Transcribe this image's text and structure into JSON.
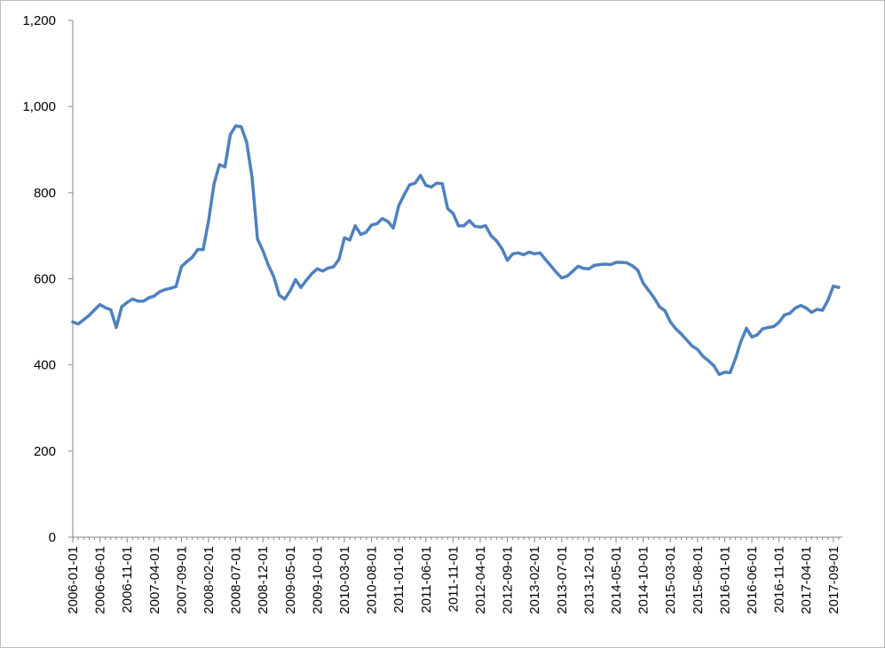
{
  "chart_data": {
    "type": "line",
    "title": "",
    "xlabel": "",
    "ylabel": "",
    "ylim": [
      0,
      1200
    ],
    "yticks": [
      0,
      200,
      400,
      600,
      800,
      1000,
      1200
    ],
    "ytick_labels": [
      "0",
      "200",
      "400",
      "600",
      "800",
      "1,000",
      "1,200"
    ],
    "xtick_labels": [
      "2006-01-01",
      "2006-06-01",
      "2006-11-01",
      "2007-04-01",
      "2007-09-01",
      "2008-02-01",
      "2008-07-01",
      "2008-12-01",
      "2009-05-01",
      "2009-10-01",
      "2010-03-01",
      "2010-08-01",
      "2011-01-01",
      "2011-06-01",
      "2011-11-01",
      "2012-04-01",
      "2012-09-01",
      "2013-02-01",
      "2013-07-01",
      "2013-12-01",
      "2014-05-01",
      "2014-10-01",
      "2015-03-01",
      "2015-08-01",
      "2016-01-01",
      "2016-06-01",
      "2016-11-01",
      "2017-04-01",
      "2017-09-01"
    ],
    "grid": false,
    "legend": "none",
    "series": [
      {
        "color": "#4f81bd",
        "x_start": "2006-01-01",
        "frequency": "monthly",
        "values": [
          500,
          495,
          505,
          515,
          528,
          540,
          533,
          528,
          487,
          535,
          545,
          553,
          548,
          548,
          556,
          560,
          570,
          575,
          578,
          582,
          628,
          640,
          650,
          668,
          668,
          735,
          820,
          865,
          860,
          935,
          955,
          953,
          918,
          835,
          692,
          665,
          632,
          605,
          562,
          553,
          572,
          598,
          580,
          597,
          612,
          623,
          618,
          625,
          628,
          645,
          695,
          690,
          723,
          703,
          708,
          725,
          728,
          740,
          733,
          718,
          770,
          795,
          818,
          822,
          840,
          817,
          813,
          822,
          821,
          763,
          752,
          723,
          723,
          735,
          722,
          720,
          723,
          700,
          688,
          670,
          643,
          658,
          660,
          656,
          662,
          658,
          660,
          645,
          630,
          615,
          602,
          606,
          617,
          629,
          624,
          623,
          631,
          633,
          634,
          633,
          638,
          638,
          637,
          630,
          620,
          590,
          573,
          556,
          535,
          526,
          500,
          484,
          472,
          458,
          444,
          436,
          420,
          410,
          398,
          378,
          383,
          382,
          415,
          455,
          485,
          465,
          470,
          484,
          487,
          489,
          499,
          516,
          520,
          532,
          538,
          532,
          522,
          529,
          527,
          550,
          583,
          580
        ]
      }
    ]
  }
}
